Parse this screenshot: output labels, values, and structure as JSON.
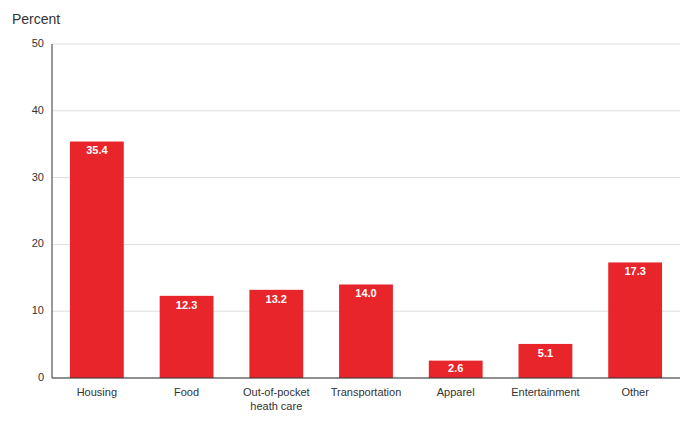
{
  "chart_data": {
    "type": "bar",
    "title": "Percent",
    "categories": [
      "Housing",
      "Food",
      "Out-of-pocket\nheath care",
      "Transportation",
      "Apparel",
      "Entertainment",
      "Other"
    ],
    "values": [
      35.4,
      12.3,
      13.2,
      14.0,
      2.6,
      5.1,
      17.3
    ],
    "value_labels": [
      "35.4",
      "12.3",
      "13.2",
      "14.0",
      "2.6",
      "5.1",
      "17.3"
    ],
    "data_labels": true,
    "color": "#e8252a",
    "ylim": [
      0,
      50
    ],
    "yticks": [
      0,
      10,
      20,
      30,
      40,
      50
    ],
    "grid": true
  }
}
